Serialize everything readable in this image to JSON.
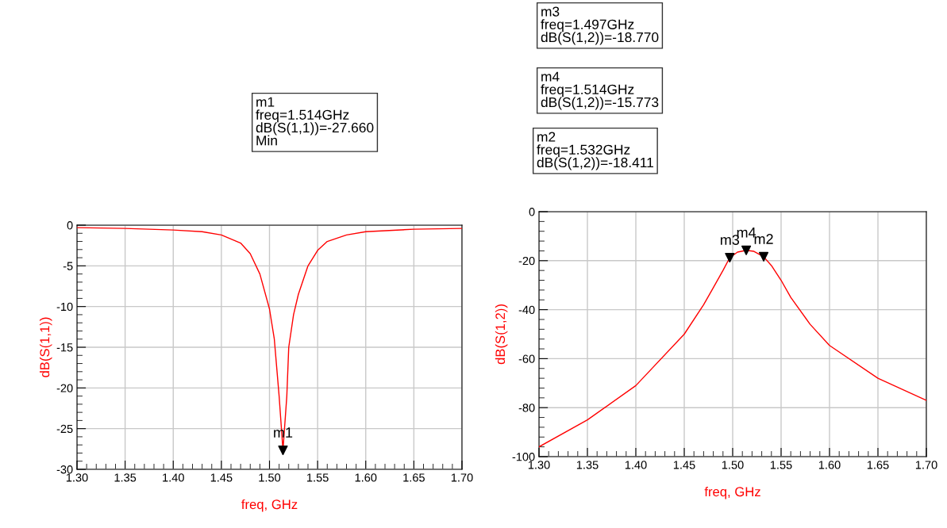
{
  "chart_data": [
    {
      "type": "line",
      "xlabel": "freq, GHz",
      "ylabel": "dB(S(1,1))",
      "xlim": [
        1.3,
        1.7
      ],
      "ylim": [
        -30,
        0
      ],
      "xticks": [
        {
          "value": 1.3,
          "label": "1.30"
        },
        {
          "value": 1.35,
          "label": "1.35"
        },
        {
          "value": 1.4,
          "label": "1.40"
        },
        {
          "value": 1.45,
          "label": "1.45"
        },
        {
          "value": 1.5,
          "label": "1.50"
        },
        {
          "value": 1.55,
          "label": "1.55"
        },
        {
          "value": 1.6,
          "label": "1.60"
        },
        {
          "value": 1.65,
          "label": "1.65"
        },
        {
          "value": 1.7,
          "label": "1.70"
        }
      ],
      "yticks": [
        -30,
        -25,
        -20,
        -15,
        -10,
        -5,
        0
      ],
      "grid": true,
      "series": [
        {
          "color": "#ff0000",
          "x": [
            1.3,
            1.35,
            1.4,
            1.43,
            1.45,
            1.47,
            1.48,
            1.49,
            1.5,
            1.505,
            1.51,
            1.514,
            1.518,
            1.52,
            1.525,
            1.53,
            1.54,
            1.55,
            1.56,
            1.58,
            1.6,
            1.65,
            1.7
          ],
          "values": [
            -0.3,
            -0.4,
            -0.6,
            -0.8,
            -1.2,
            -2.2,
            -3.5,
            -6,
            -10.3,
            -14,
            -21,
            -27.66,
            -21,
            -15,
            -11,
            -8.5,
            -5,
            -3.1,
            -2.0,
            -1.2,
            -0.8,
            -0.5,
            -0.4
          ]
        },
        {
          "type": "scatter",
          "color": "#000000",
          "marker": "triangle",
          "x": [
            1.514
          ],
          "values": [
            -27.66
          ]
        }
      ],
      "annotations": [
        {
          "text": "m1",
          "x": 1.514,
          "y": -27.66
        },
        "m1\nfreq=1.514GHz\ndB(S(1,1))=-27.660\nMin"
      ]
    },
    {
      "type": "line",
      "xlabel": "freq, GHz",
      "ylabel": "dB(S(1,2))",
      "xlim": [
        1.3,
        1.7
      ],
      "ylim": [
        -100,
        0
      ],
      "xticks": [
        {
          "value": 1.3,
          "label": "1.30"
        },
        {
          "value": 1.35,
          "label": "1.35"
        },
        {
          "value": 1.4,
          "label": "1.40"
        },
        {
          "value": 1.45,
          "label": "1.45"
        },
        {
          "value": 1.5,
          "label": "1.50"
        },
        {
          "value": 1.55,
          "label": "1.55"
        },
        {
          "value": 1.6,
          "label": "1.60"
        },
        {
          "value": 1.65,
          "label": "1.65"
        },
        {
          "value": 1.7,
          "label": "1.70"
        }
      ],
      "yticks": [
        -100,
        -80,
        -60,
        -40,
        -20,
        0
      ],
      "grid": true,
      "series": [
        {
          "color": "#ff0000",
          "x": [
            1.3,
            1.35,
            1.4,
            1.45,
            1.47,
            1.48,
            1.49,
            1.497,
            1.505,
            1.514,
            1.522,
            1.532,
            1.54,
            1.55,
            1.56,
            1.58,
            1.6,
            1.65,
            1.7
          ],
          "values": [
            -96,
            -85,
            -71,
            -50,
            -38,
            -31,
            -24,
            -18.77,
            -16.5,
            -15.773,
            -16.2,
            -18.411,
            -22,
            -28,
            -35,
            -46,
            -54.6,
            -68,
            -77
          ]
        },
        {
          "type": "scatter",
          "color": "#000000",
          "marker": "triangle",
          "x": [
            1.497,
            1.514,
            1.532
          ],
          "values": [
            -18.77,
            -15.773,
            -18.411
          ]
        }
      ],
      "annotations": [
        {
          "text": "m3",
          "x": 1.497,
          "y": -18.77
        },
        {
          "text": "m4",
          "x": 1.514,
          "y": -15.773
        },
        {
          "text": "m2",
          "x": 1.532,
          "y": -18.411
        },
        "m3\nfreq=1.497GHz\ndB(S(1,2))=-18.770",
        "m4\nfreq=1.514GHz\ndB(S(1,2))=-15.773",
        "m2\nfreq=1.532GHz\ndB(S(1,2))=-18.411"
      ]
    }
  ]
}
